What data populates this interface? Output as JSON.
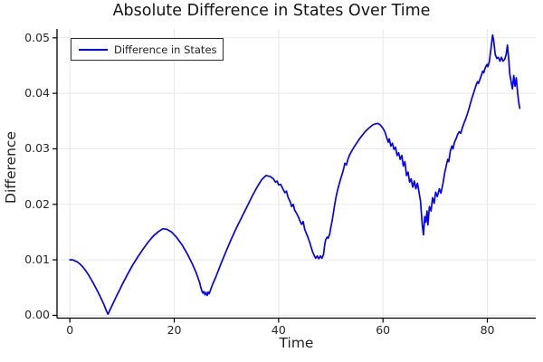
{
  "chart_data": {
    "type": "line",
    "title": "Absolute Difference in States Over Time",
    "xlabel": "Time",
    "ylabel": "Difference",
    "xlim": [
      -2.46,
      89.27
    ],
    "ylim": [
      -0.0005,
      0.0516
    ],
    "grid": true,
    "x_ticks": {
      "values": [
        0,
        20,
        40,
        60,
        80
      ],
      "labels": [
        "0",
        "20",
        "40",
        "60",
        "80"
      ]
    },
    "y_ticks": {
      "values": [
        0,
        0.01,
        0.02,
        0.03,
        0.04,
        0.05
      ],
      "labels": [
        "0.00",
        "0.01",
        "0.02",
        "0.03",
        "0.04",
        "0.05"
      ]
    },
    "legend": {
      "position": "top-left",
      "entries": [
        {
          "label": "Difference in States",
          "color": "#0000ff"
        }
      ]
    },
    "colors": {
      "line": "#0000ff",
      "grid": "#e8e8e8",
      "axis": "#000000",
      "title_text": "#141414",
      "label_text": "#1f1f1f",
      "tick_text": "#262626",
      "background": "#ffffff",
      "legend_border": "#2f2f2f"
    },
    "series": [
      {
        "name": "Difference in States",
        "color": "#0000ff",
        "points": [
          [
            0,
            0.01
          ],
          [
            0.5,
            0.01
          ],
          [
            1,
            0.0098
          ],
          [
            1.5,
            0.0096
          ],
          [
            2,
            0.0092
          ],
          [
            2.5,
            0.0087
          ],
          [
            3,
            0.0081
          ],
          [
            3.5,
            0.0074
          ],
          [
            4,
            0.0066
          ],
          [
            4.5,
            0.0058
          ],
          [
            5,
            0.0049
          ],
          [
            5.5,
            0.004
          ],
          [
            6,
            0.003
          ],
          [
            6.5,
            0.002
          ],
          [
            7,
            0.0008
          ],
          [
            7.3,
            0.0002
          ],
          [
            7.6,
            0.0008
          ],
          [
            8,
            0.0016
          ],
          [
            8.5,
            0.0026
          ],
          [
            9,
            0.0036
          ],
          [
            9.5,
            0.0045
          ],
          [
            10,
            0.0055
          ],
          [
            11,
            0.0073
          ],
          [
            12,
            0.009
          ],
          [
            13,
            0.0105
          ],
          [
            14,
            0.0119
          ],
          [
            15,
            0.0132
          ],
          [
            16,
            0.0143
          ],
          [
            17,
            0.0151
          ],
          [
            17.8,
            0.0156
          ],
          [
            18.6,
            0.0155
          ],
          [
            19.5,
            0.015
          ],
          [
            20.5,
            0.014
          ],
          [
            21.5,
            0.0127
          ],
          [
            22.5,
            0.0111
          ],
          [
            23.5,
            0.0092
          ],
          [
            24.2,
            0.0077
          ],
          [
            24.6,
            0.0066
          ],
          [
            24.9,
            0.0058
          ],
          [
            25.1,
            0.005
          ],
          [
            25.3,
            0.0044
          ],
          [
            25.5,
            0.004
          ],
          [
            25.7,
            0.0043
          ],
          [
            25.9,
            0.0037
          ],
          [
            26.1,
            0.0041
          ],
          [
            26.3,
            0.0036
          ],
          [
            26.5,
            0.0042
          ],
          [
            26.7,
            0.0039
          ],
          [
            27,
            0.0047
          ],
          [
            27.4,
            0.0057
          ],
          [
            28,
            0.007
          ],
          [
            29,
            0.0094
          ],
          [
            30,
            0.0117
          ],
          [
            31,
            0.0139
          ],
          [
            32,
            0.0159
          ],
          [
            33,
            0.0178
          ],
          [
            34,
            0.0197
          ],
          [
            35,
            0.0216
          ],
          [
            36,
            0.0233
          ],
          [
            36.8,
            0.0245
          ],
          [
            37.6,
            0.0252
          ],
          [
            38.4,
            0.025
          ],
          [
            39,
            0.0246
          ],
          [
            39.4,
            0.024
          ],
          [
            39.7,
            0.0242
          ],
          [
            40,
            0.0235
          ],
          [
            40.4,
            0.0236
          ],
          [
            40.8,
            0.0228
          ],
          [
            41.2,
            0.0221
          ],
          [
            41.5,
            0.0224
          ],
          [
            41.8,
            0.0213
          ],
          [
            42.2,
            0.0205
          ],
          [
            42.5,
            0.0196
          ],
          [
            42.8,
            0.02
          ],
          [
            43.1,
            0.0189
          ],
          [
            43.5,
            0.0183
          ],
          [
            43.8,
            0.0177
          ],
          [
            44.1,
            0.017
          ],
          [
            44.4,
            0.0164
          ],
          [
            44.7,
            0.0169
          ],
          [
            45,
            0.0155
          ],
          [
            45.3,
            0.0148
          ],
          [
            45.6,
            0.0141
          ],
          [
            45.9,
            0.0133
          ],
          [
            46.2,
            0.0124
          ],
          [
            46.5,
            0.0115
          ],
          [
            46.8,
            0.0108
          ],
          [
            47.1,
            0.0103
          ],
          [
            47.4,
            0.0107
          ],
          [
            47.7,
            0.0102
          ],
          [
            48,
            0.0107
          ],
          [
            48.3,
            0.0103
          ],
          [
            48.6,
            0.011
          ],
          [
            48.8,
            0.0125
          ],
          [
            49,
            0.0136
          ],
          [
            49.3,
            0.0141
          ],
          [
            49.5,
            0.0139
          ],
          [
            49.8,
            0.0147
          ],
          [
            50,
            0.0158
          ],
          [
            50.3,
            0.0173
          ],
          [
            50.6,
            0.0191
          ],
          [
            50.9,
            0.0208
          ],
          [
            51.2,
            0.0222
          ],
          [
            51.5,
            0.0233
          ],
          [
            51.8,
            0.0243
          ],
          [
            52.1,
            0.0252
          ],
          [
            52.4,
            0.0262
          ],
          [
            52.7,
            0.0274
          ],
          [
            53,
            0.0271
          ],
          [
            53.3,
            0.0282
          ],
          [
            53.6,
            0.0289
          ],
          [
            54,
            0.0296
          ],
          [
            54.5,
            0.0304
          ],
          [
            55,
            0.0311
          ],
          [
            55.5,
            0.0318
          ],
          [
            56,
            0.0324
          ],
          [
            56.5,
            0.033
          ],
          [
            57,
            0.0335
          ],
          [
            57.5,
            0.0339
          ],
          [
            58,
            0.0343
          ],
          [
            58.5,
            0.0345
          ],
          [
            59,
            0.0346
          ],
          [
            59.5,
            0.0343
          ],
          [
            60,
            0.0337
          ],
          [
            60.4,
            0.033
          ],
          [
            60.7,
            0.0321
          ],
          [
            61,
            0.0312
          ],
          [
            61.2,
            0.0318
          ],
          [
            61.5,
            0.0305
          ],
          [
            61.8,
            0.031
          ],
          [
            62.1,
            0.0299
          ],
          [
            62.4,
            0.0303
          ],
          [
            62.7,
            0.0288
          ],
          [
            63,
            0.0293
          ],
          [
            63.3,
            0.0281
          ],
          [
            63.6,
            0.0288
          ],
          [
            63.9,
            0.0269
          ],
          [
            64.2,
            0.0277
          ],
          [
            64.5,
            0.0252
          ],
          [
            64.8,
            0.0258
          ],
          [
            65.1,
            0.024
          ],
          [
            65.4,
            0.0246
          ],
          [
            65.7,
            0.0231
          ],
          [
            66,
            0.0242
          ],
          [
            66.3,
            0.0228
          ],
          [
            66.6,
            0.0238
          ],
          [
            66.9,
            0.0222
          ],
          [
            67.2,
            0.0205
          ],
          [
            67.5,
            0.0165
          ],
          [
            67.75,
            0.0145
          ],
          [
            68,
            0.0178
          ],
          [
            68.2,
            0.0168
          ],
          [
            68.45,
            0.0188
          ],
          [
            68.6,
            0.0163
          ],
          [
            68.9,
            0.0196
          ],
          [
            69.2,
            0.0188
          ],
          [
            69.5,
            0.0212
          ],
          [
            69.8,
            0.0202
          ],
          [
            70.1,
            0.0222
          ],
          [
            70.4,
            0.0214
          ],
          [
            70.8,
            0.0228
          ],
          [
            71.1,
            0.022
          ],
          [
            71.5,
            0.0238
          ],
          [
            71.8,
            0.0256
          ],
          [
            72.1,
            0.0269
          ],
          [
            72.4,
            0.0281
          ],
          [
            72.6,
            0.0277
          ],
          [
            72.9,
            0.0296
          ],
          [
            73.2,
            0.0305
          ],
          [
            73.4,
            0.03
          ],
          [
            73.7,
            0.0312
          ],
          [
            74,
            0.0318
          ],
          [
            74.3,
            0.0326
          ],
          [
            74.6,
            0.0331
          ],
          [
            74.9,
            0.0328
          ],
          [
            75.2,
            0.0338
          ],
          [
            75.5,
            0.0346
          ],
          [
            75.8,
            0.0353
          ],
          [
            76.1,
            0.0361
          ],
          [
            76.4,
            0.037
          ],
          [
            76.7,
            0.038
          ],
          [
            77,
            0.039
          ],
          [
            77.3,
            0.0399
          ],
          [
            77.6,
            0.0408
          ],
          [
            77.9,
            0.0416
          ],
          [
            78.1,
            0.0421
          ],
          [
            78.3,
            0.0418
          ],
          [
            78.6,
            0.0426
          ],
          [
            78.9,
            0.0434
          ],
          [
            79.1,
            0.044
          ],
          [
            79.3,
            0.0437
          ],
          [
            79.6,
            0.0446
          ],
          [
            79.9,
            0.0452
          ],
          [
            80.1,
            0.0448
          ],
          [
            80.4,
            0.0458
          ],
          [
            80.8,
            0.049
          ],
          [
            81,
            0.0505
          ],
          [
            81.2,
            0.0495
          ],
          [
            81.5,
            0.047
          ],
          [
            81.8,
            0.0463
          ],
          [
            82.1,
            0.0465
          ],
          [
            82.4,
            0.0458
          ],
          [
            82.7,
            0.0465
          ],
          [
            83,
            0.0458
          ],
          [
            83.3,
            0.0461
          ],
          [
            83.6,
            0.047
          ],
          [
            83.85,
            0.0487
          ],
          [
            84.1,
            0.046
          ],
          [
            84.3,
            0.0435
          ],
          [
            84.55,
            0.0421
          ],
          [
            84.8,
            0.0408
          ],
          [
            85.05,
            0.0432
          ],
          [
            85.3,
            0.0413
          ],
          [
            85.55,
            0.0428
          ],
          [
            85.8,
            0.04
          ],
          [
            86,
            0.0385
          ],
          [
            86.2,
            0.0373
          ]
        ]
      }
    ]
  }
}
